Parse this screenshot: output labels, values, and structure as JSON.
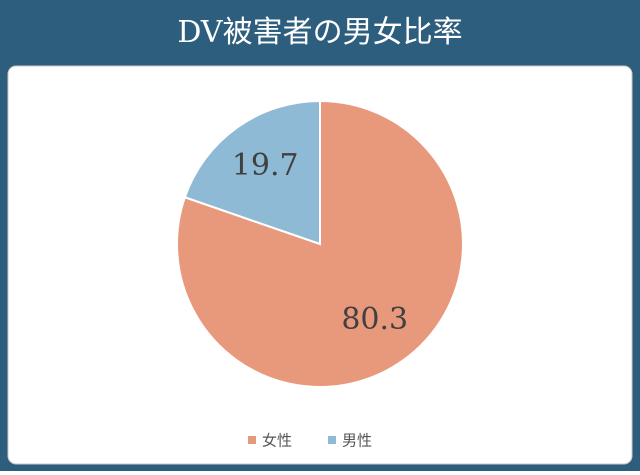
{
  "chart_data": {
    "type": "pie",
    "title": "DV被害者の男女比率",
    "categories": [
      "女性",
      "男性"
    ],
    "values": [
      80.3,
      19.7
    ],
    "colors": [
      "#e9997b",
      "#8fbad6"
    ]
  }
}
